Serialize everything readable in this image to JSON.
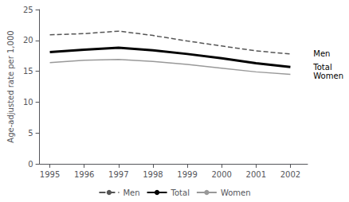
{
  "chart_data": {
    "type": "line",
    "x": [
      1995,
      1996,
      1997,
      1998,
      1999,
      2000,
      2001,
      2002
    ],
    "series": [
      {
        "name": "Men",
        "color": "#555555",
        "line_style": "dashed",
        "values": [
          20.9,
          21.1,
          21.5,
          20.8,
          19.9,
          19.1,
          18.3,
          17.8
        ]
      },
      {
        "name": "Total",
        "color": "#000000",
        "line_style": "solid",
        "values": [
          18.1,
          18.5,
          18.8,
          18.4,
          17.8,
          17.1,
          16.3,
          15.7
        ]
      },
      {
        "name": "Women",
        "color": "#999999",
        "line_style": "solid",
        "values": [
          16.4,
          16.8,
          16.9,
          16.6,
          16.1,
          15.5,
          14.9,
          14.5
        ]
      }
    ],
    "ylabel": "Age-adjusted rate per 1,000",
    "xlim": [
      1994.7,
      2002.5
    ],
    "xticks": [
      1995,
      1996,
      1997,
      1998,
      1999,
      2000,
      2001,
      2002
    ],
    "ylim": [
      0,
      25
    ],
    "yticks": [
      0,
      5,
      10,
      15,
      20,
      25
    ],
    "annotations": [
      {
        "text": "Men",
        "x": 2002.6,
        "y": 17.8
      },
      {
        "text": "Total",
        "x": 2002.6,
        "y": 15.7
      },
      {
        "text": "Women",
        "x": 2002.6,
        "y": 14.5
      }
    ],
    "grid": false,
    "legend": "bottom"
  }
}
